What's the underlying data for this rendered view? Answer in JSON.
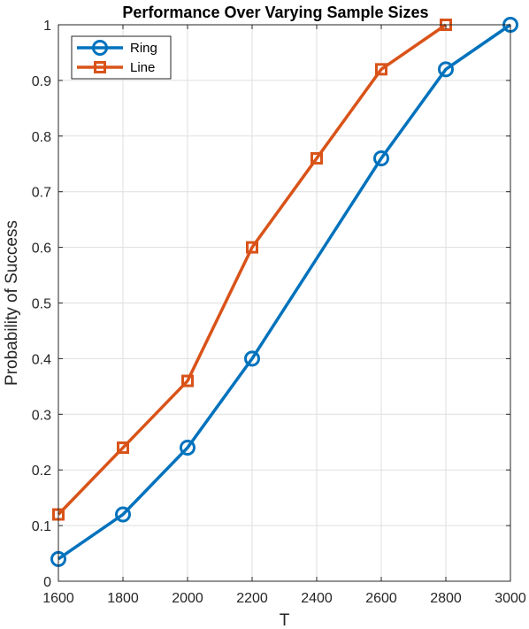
{
  "chart_data": {
    "type": "line",
    "title": "Performance Over Varying Sample Sizes",
    "xlabel": "T",
    "ylabel": "Probability of Success",
    "xlim": [
      1600,
      3000
    ],
    "ylim": [
      0,
      1
    ],
    "xticks": [
      1600,
      1800,
      2000,
      2200,
      2400,
      2600,
      2800,
      3000
    ],
    "yticks": [
      0,
      0.1,
      0.2,
      0.3,
      0.4,
      0.5,
      0.6,
      0.7,
      0.8,
      0.9,
      1
    ],
    "ytick_labels": [
      "0",
      "0.1",
      "0.2",
      "0.3",
      "0.4",
      "0.5",
      "0.6",
      "0.7",
      "0.8",
      "0.9",
      "1"
    ],
    "grid": true,
    "legend_position": "top-left",
    "series": [
      {
        "name": "Ring",
        "color": "#0072BD",
        "marker": "circle",
        "x": [
          1600,
          1800,
          2000,
          2200,
          2400,
          2600,
          2800,
          3000
        ],
        "y": [
          0.04,
          0.12,
          0.24,
          0.4,
          0.58,
          0.76,
          0.92,
          1.0
        ],
        "marker_shown": [
          true,
          true,
          true,
          true,
          false,
          true,
          true,
          true
        ]
      },
      {
        "name": "Line",
        "color": "#D95319",
        "marker": "square",
        "x": [
          1600,
          1800,
          2000,
          2200,
          2400,
          2600,
          2800
        ],
        "y": [
          0.12,
          0.24,
          0.36,
          0.6,
          0.76,
          0.92,
          1.0
        ],
        "marker_shown": [
          true,
          true,
          true,
          true,
          true,
          true,
          true
        ]
      }
    ]
  }
}
